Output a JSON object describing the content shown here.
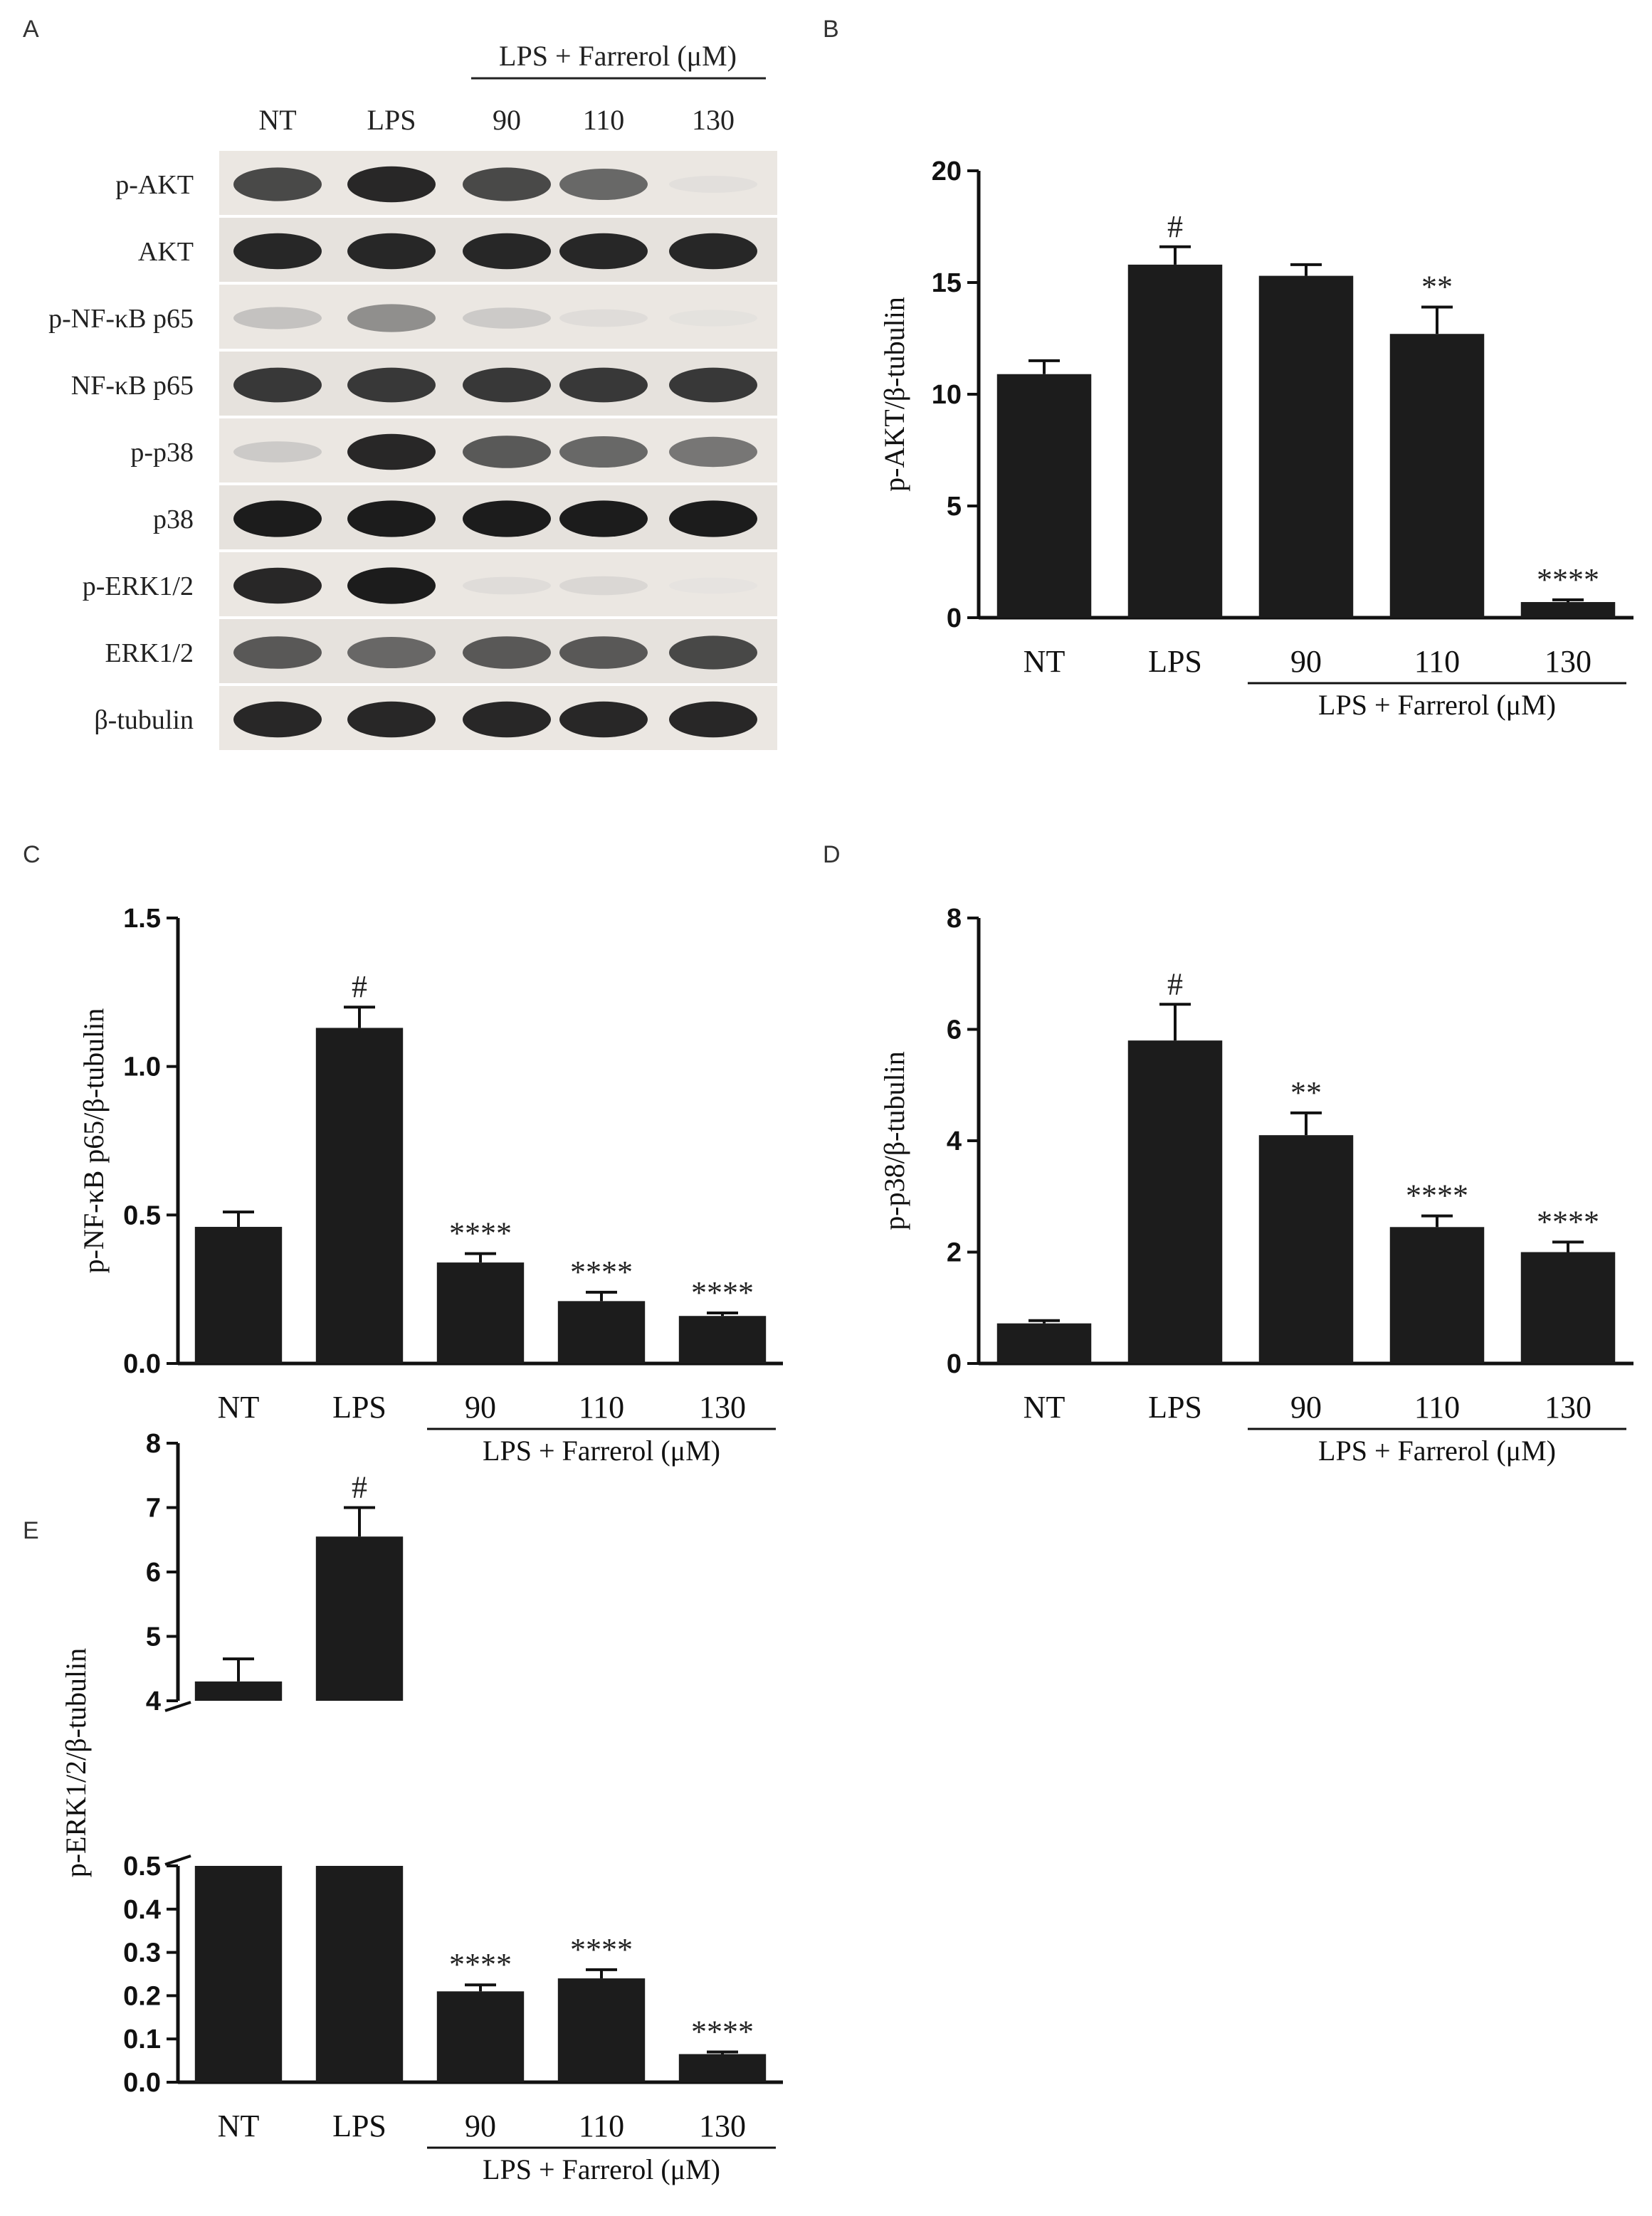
{
  "figure": {
    "panel_letters": [
      "A",
      "B",
      "C",
      "D",
      "E"
    ]
  },
  "blot": {
    "header": "LPS + Farrerol (μM)",
    "lanes": [
      "NT",
      "LPS",
      "90",
      "110",
      "130"
    ],
    "rows": [
      {
        "label": "p-AKT",
        "intensity": [
          0.85,
          0.95,
          0.85,
          0.75,
          0.12
        ]
      },
      {
        "label": "AKT",
        "intensity": [
          0.95,
          0.95,
          0.95,
          0.95,
          0.95
        ]
      },
      {
        "label": "p-NF-κB p65",
        "intensity": [
          0.35,
          0.6,
          0.3,
          0.15,
          0.1
        ]
      },
      {
        "label": "NF-κB p65",
        "intensity": [
          0.9,
          0.9,
          0.9,
          0.9,
          0.9
        ]
      },
      {
        "label": "p-p38",
        "intensity": [
          0.3,
          0.95,
          0.8,
          0.75,
          0.7
        ]
      },
      {
        "label": "p38",
        "intensity": [
          0.98,
          0.98,
          0.98,
          0.98,
          0.98
        ]
      },
      {
        "label": "p-ERK1/2",
        "intensity": [
          0.95,
          0.98,
          0.15,
          0.2,
          0.08
        ]
      },
      {
        "label": "ERK1/2",
        "intensity": [
          0.8,
          0.75,
          0.8,
          0.8,
          0.85
        ]
      },
      {
        "label": "β-tubulin",
        "intensity": [
          0.95,
          0.95,
          0.95,
          0.95,
          0.95
        ]
      }
    ]
  },
  "chart_data": [
    {
      "panel": "B",
      "type": "bar",
      "categories": [
        "NT",
        "LPS",
        "90",
        "110",
        "130"
      ],
      "values": [
        10.9,
        15.8,
        15.3,
        12.7,
        0.7
      ],
      "errors": [
        0.6,
        0.8,
        0.5,
        1.2,
        0.1
      ],
      "annotations": [
        "",
        "#",
        "",
        "**",
        "****"
      ],
      "ylabel": "p-AKT/β-tubulin",
      "group_label": "LPS + Farrerol (μM)",
      "ylim": [
        0,
        20
      ],
      "yticks": [
        "0",
        "5",
        "10",
        "15",
        "20"
      ]
    },
    {
      "panel": "C",
      "type": "bar",
      "categories": [
        "NT",
        "LPS",
        "90",
        "110",
        "130"
      ],
      "values": [
        0.46,
        1.13,
        0.34,
        0.21,
        0.16
      ],
      "errors": [
        0.05,
        0.07,
        0.03,
        0.03,
        0.01
      ],
      "annotations": [
        "",
        "#",
        "****",
        "****",
        "****"
      ],
      "ylabel": "p-NF-κB p65/β-tubulin",
      "group_label": "LPS + Farrerol (μM)",
      "ylim": [
        0,
        1.5
      ],
      "yticks": [
        "0.0",
        "0.5",
        "1.0",
        "1.5"
      ]
    },
    {
      "panel": "D",
      "type": "bar",
      "categories": [
        "NT",
        "LPS",
        "90",
        "110",
        "130"
      ],
      "values": [
        0.72,
        5.8,
        4.1,
        2.45,
        2.0
      ],
      "errors": [
        0.05,
        0.65,
        0.4,
        0.2,
        0.18
      ],
      "annotations": [
        "",
        "#",
        "**",
        "****",
        "****"
      ],
      "ylabel": "p-p38/β-tubulin",
      "group_label": "LPS + Farrerol (μM)",
      "ylim": [
        0,
        8
      ],
      "yticks": [
        "0",
        "2",
        "4",
        "6",
        "8"
      ]
    },
    {
      "panel": "E",
      "type": "bar",
      "categories": [
        "NT",
        "LPS",
        "90",
        "110",
        "130"
      ],
      "values": [
        4.3,
        6.55,
        0.21,
        0.24,
        0.065
      ],
      "errors": [
        0.35,
        0.45,
        0.015,
        0.02,
        0.005
      ],
      "annotations": [
        "",
        "#",
        "****",
        "****",
        "****"
      ],
      "ylabel": "p-ERK1/2/β-tubulin",
      "group_label": "LPS + Farrerol (μM)",
      "axis_break": {
        "lower": [
          0,
          0.5
        ],
        "upper": [
          4,
          8
        ]
      },
      "yticks_lower": [
        "0.0",
        "0.1",
        "0.2",
        "0.3",
        "0.4",
        "0.5"
      ],
      "yticks_upper": [
        "4",
        "5",
        "6",
        "7",
        "8"
      ]
    }
  ]
}
